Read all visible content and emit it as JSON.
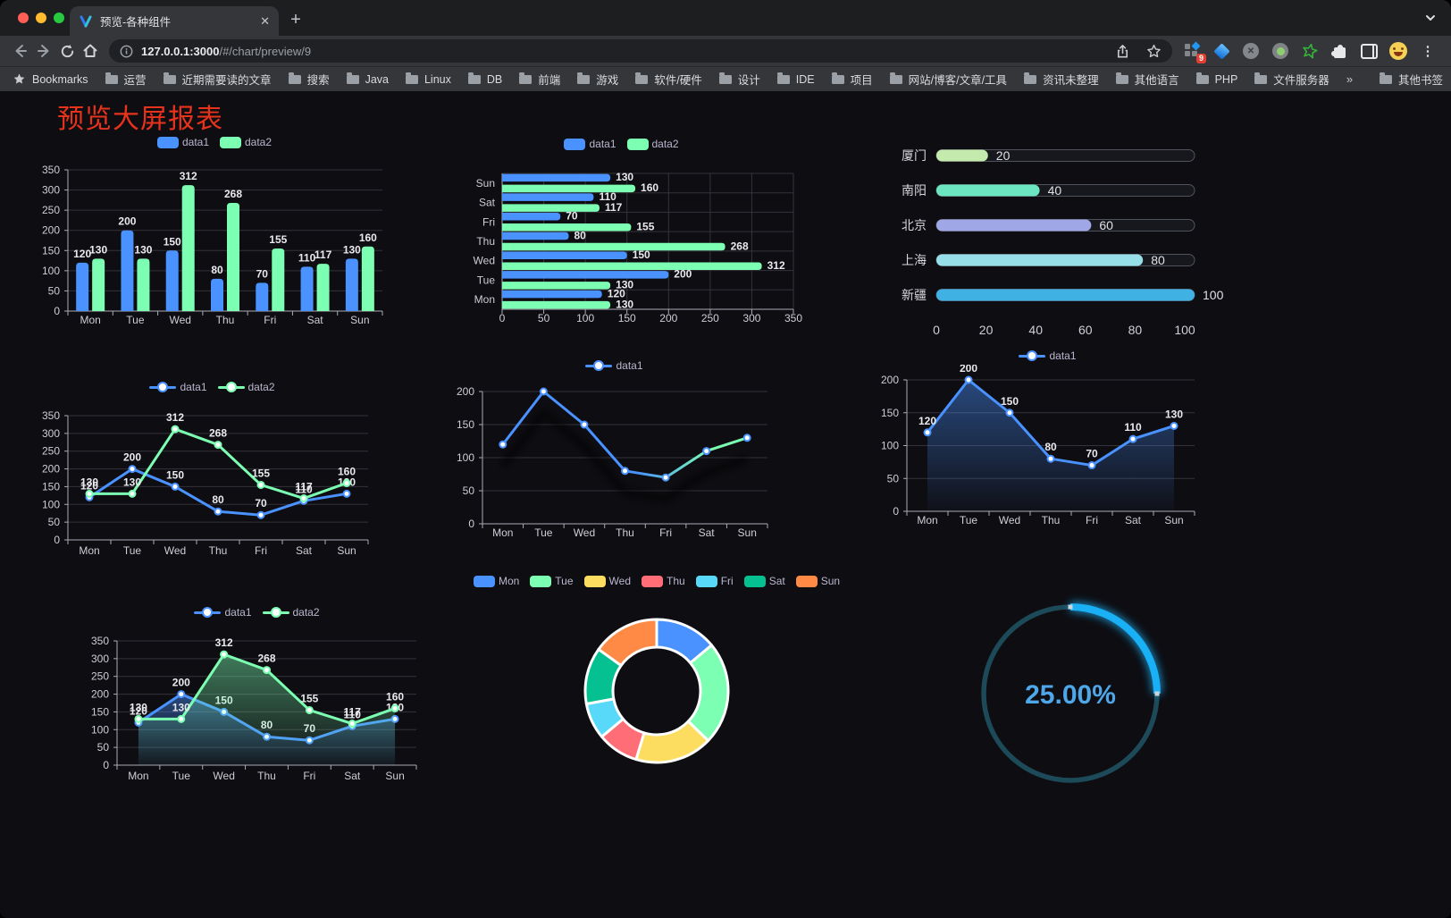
{
  "browser": {
    "tab": {
      "title": "预览-各种组件",
      "close_icon": "✕",
      "new_tab_icon": "+"
    },
    "toolbar": {
      "url_host": "127.0.0.1:3000",
      "url_path": "/#/chart/preview/9",
      "extension_badge": "9"
    },
    "bookmarks_bar": {
      "bookmarks_label": "Bookmarks",
      "items": [
        "运营",
        "近期需要读的文章",
        "搜索",
        "Java",
        "Linux",
        "DB",
        "前端",
        "游戏",
        "软件/硬件",
        "设计",
        "IDE",
        "项目",
        "网站/博客/文章/工具",
        "资讯未整理",
        "其他语言",
        "PHP",
        "文件服务器"
      ],
      "overflow": "»",
      "other_label": "其他书签"
    },
    "traffic_lights": [
      "#ff5f57",
      "#febc2e",
      "#28c840"
    ]
  },
  "page": {
    "title": "预览大屏报表",
    "title_color": "#e8331c",
    "background": "#0e0d12"
  },
  "palette": {
    "dark_theme": [
      "#4992ff",
      "#7cffb2",
      "#fddd60",
      "#ff6e76",
      "#58d9f9",
      "#05c091",
      "#ff8a45"
    ],
    "walden": [
      "#c4ebad",
      "#6be6c1",
      "#a0a7e6",
      "#96dee8",
      "#3fb1e3"
    ]
  },
  "chart_data": [
    {
      "id": "bar-grouped",
      "type": "bar",
      "categories": [
        "Mon",
        "Tue",
        "Wed",
        "Thu",
        "Fri",
        "Sat",
        "Sun"
      ],
      "series": [
        {
          "name": "data1",
          "color": "#4992ff",
          "values": [
            120,
            200,
            150,
            80,
            70,
            110,
            130
          ]
        },
        {
          "name": "data2",
          "color": "#7cffb2",
          "values": [
            130,
            130,
            312,
            268,
            155,
            117,
            160
          ]
        }
      ],
      "ylim": [
        0,
        350
      ],
      "ytick_step": 50,
      "value_labels": true,
      "legend_position": "top",
      "grid": true
    },
    {
      "id": "hbar-grouped",
      "type": "hbar",
      "categories": [
        "Mon",
        "Tue",
        "Wed",
        "Thu",
        "Fri",
        "Sat",
        "Sun"
      ],
      "category_order": "bottom-up",
      "series": [
        {
          "name": "data1",
          "color": "#4992ff",
          "values": [
            120,
            200,
            150,
            80,
            70,
            110,
            130
          ]
        },
        {
          "name": "data2",
          "color": "#7cffb2",
          "values": [
            130,
            130,
            312,
            268,
            155,
            117,
            160
          ]
        }
      ],
      "xlim": [
        0,
        350
      ],
      "xtick_step": 50,
      "value_labels": true,
      "legend_position": "top",
      "grid": true
    },
    {
      "id": "progress-bars",
      "type": "bar-progress",
      "items": [
        {
          "label": "厦门",
          "value": 20,
          "color": "#c4ebad"
        },
        {
          "label": "南阳",
          "value": 40,
          "color": "#6be6c1"
        },
        {
          "label": "北京",
          "value": 60,
          "color": "#a0a7e6"
        },
        {
          "label": "上海",
          "value": 80,
          "color": "#96dee8"
        },
        {
          "label": "新疆",
          "value": 100,
          "color": "#3fb1e3"
        }
      ],
      "xlim": [
        0,
        100
      ],
      "xticks": [
        0,
        20,
        40,
        60,
        80,
        100
      ]
    },
    {
      "id": "line-two-series",
      "type": "line",
      "categories": [
        "Mon",
        "Tue",
        "Wed",
        "Thu",
        "Fri",
        "Sat",
        "Sun"
      ],
      "series": [
        {
          "name": "data1",
          "color": "#4992ff",
          "values": [
            120,
            200,
            150,
            80,
            70,
            110,
            130
          ]
        },
        {
          "name": "data2",
          "color": "#7cffb2",
          "values": [
            130,
            130,
            312,
            268,
            155,
            117,
            160
          ]
        }
      ],
      "ylim": [
        0,
        350
      ],
      "ytick_step": 50,
      "value_labels": true,
      "legend_position": "top",
      "grid": true
    },
    {
      "id": "line-gradient",
      "type": "line",
      "categories": [
        "Mon",
        "Tue",
        "Wed",
        "Thu",
        "Fri",
        "Sat",
        "Sun"
      ],
      "series": [
        {
          "name": "data1",
          "gradient": [
            "#4992ff",
            "#7cffb2"
          ],
          "values": [
            120,
            200,
            150,
            80,
            70,
            110,
            130
          ]
        }
      ],
      "ylim": [
        0,
        200
      ],
      "ytick_step": 50,
      "value_labels": false,
      "shadow": true,
      "legend_position": "top",
      "grid": true
    },
    {
      "id": "area-single",
      "type": "area",
      "categories": [
        "Mon",
        "Tue",
        "Wed",
        "Thu",
        "Fri",
        "Sat",
        "Sun"
      ],
      "series": [
        {
          "name": "data1",
          "color": "#4992ff",
          "area": true,
          "values": [
            120,
            200,
            150,
            80,
            70,
            110,
            130
          ]
        }
      ],
      "ylim": [
        0,
        200
      ],
      "ytick_step": 50,
      "value_labels": true,
      "legend_position": "top",
      "grid": true
    },
    {
      "id": "area-two-series",
      "type": "area",
      "categories": [
        "Mon",
        "Tue",
        "Wed",
        "Thu",
        "Fri",
        "Sat",
        "Sun"
      ],
      "series": [
        {
          "name": "data1",
          "color": "#4992ff",
          "area": true,
          "values": [
            120,
            200,
            150,
            80,
            70,
            110,
            130
          ]
        },
        {
          "name": "data2",
          "color": "#7cffb2",
          "area": true,
          "values": [
            130,
            130,
            312,
            268,
            155,
            117,
            160
          ]
        }
      ],
      "ylim": [
        0,
        350
      ],
      "ytick_step": 50,
      "value_labels": true,
      "legend_position": "top",
      "grid": true
    },
    {
      "id": "donut",
      "type": "pie",
      "categories": [
        "Mon",
        "Tue",
        "Wed",
        "Thu",
        "Fri",
        "Sat",
        "Sun"
      ],
      "values": [
        120,
        200,
        150,
        80,
        70,
        110,
        130
      ],
      "colors": [
        "#4992ff",
        "#7cffb2",
        "#fddd60",
        "#ff6e76",
        "#58d9f9",
        "#05c091",
        "#ff8a45"
      ],
      "inner_radius_ratio": 0.61,
      "border_color": "#ffffff",
      "legend_position": "top"
    },
    {
      "id": "gauge",
      "type": "gauge",
      "value": 25,
      "label": "25.00%",
      "track_color": "#1d4a58",
      "bar_color": "#1ab0f5",
      "text_color": "#4da7e8"
    }
  ]
}
